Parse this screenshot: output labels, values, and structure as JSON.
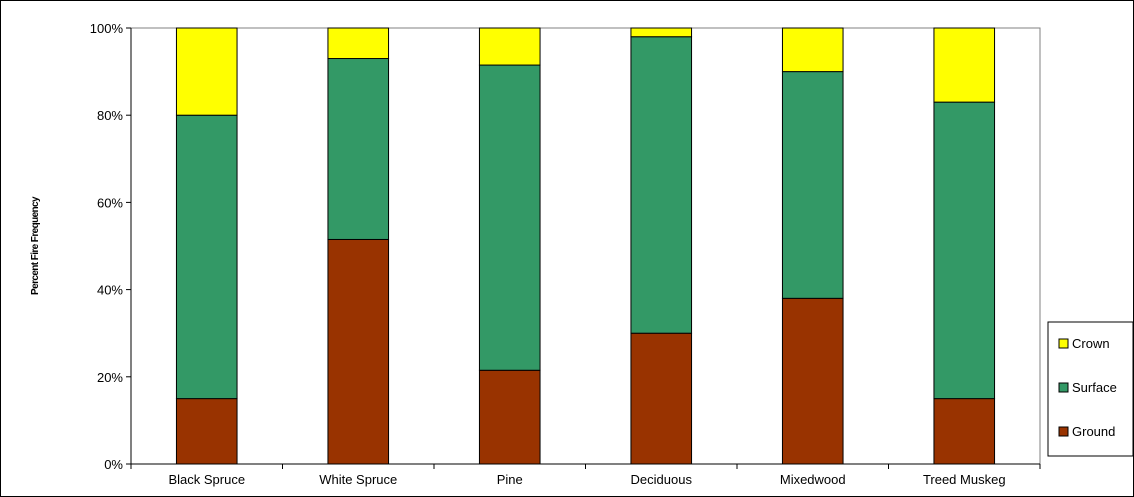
{
  "chart_data": {
    "type": "bar",
    "stacked": true,
    "percent_stacked": true,
    "categories": [
      "Black Spruce",
      "White Spruce",
      "Pine",
      "Deciduous",
      "Mixedwood",
      "Treed Muskeg"
    ],
    "series": [
      {
        "name": "Ground",
        "values": [
          15,
          51.5,
          21.5,
          30,
          38,
          15
        ]
      },
      {
        "name": "Surface",
        "values": [
          65,
          41.5,
          70,
          68,
          52,
          68
        ]
      },
      {
        "name": "Crown",
        "values": [
          20,
          7,
          8.5,
          2,
          10,
          17
        ]
      }
    ],
    "ylabel": "Percent Fire Frequency",
    "ylim": [
      0,
      100
    ],
    "y_ticks": [
      "0%",
      "20%",
      "40%",
      "60%",
      "80%",
      "100%"
    ],
    "y_tick_values": [
      0,
      20,
      40,
      60,
      80,
      100
    ],
    "grid": false,
    "legend_position": "right",
    "legend_order": [
      "Crown",
      "Surface",
      "Ground"
    ],
    "colors": {
      "Ground": "#993300",
      "Surface": "#339966",
      "Crown": "#ffff00"
    }
  }
}
